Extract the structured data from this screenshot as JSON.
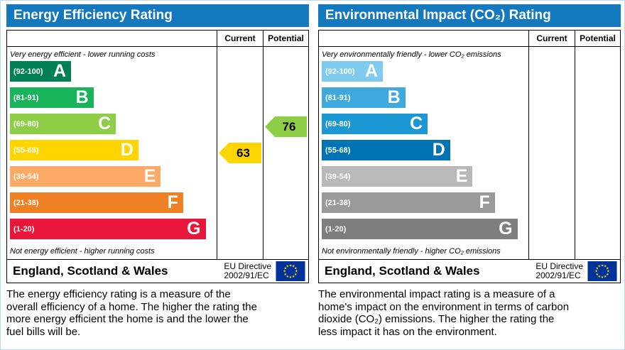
{
  "panels": [
    {
      "title": "Energy Efficiency Rating",
      "col_current": "Current",
      "col_potential": "Potential",
      "top_note": "Very energy efficient - lower running costs",
      "bottom_note": "Not energy efficient - higher running costs",
      "bands": [
        {
          "range": "(92-100)",
          "letter": "A",
          "color": "#008054",
          "width_pct": 30
        },
        {
          "range": "(81-91)",
          "letter": "B",
          "color": "#19b459",
          "width_pct": 41
        },
        {
          "range": "(69-80)",
          "letter": "C",
          "color": "#8dce46",
          "width_pct": 52
        },
        {
          "range": "(55-68)",
          "letter": "D",
          "color": "#ffd500",
          "width_pct": 63
        },
        {
          "range": "(39-54)",
          "letter": "E",
          "color": "#fcaa65",
          "width_pct": 74
        },
        {
          "range": "(21-38)",
          "letter": "F",
          "color": "#ef8023",
          "width_pct": 85
        },
        {
          "range": "(1-20)",
          "letter": "G",
          "color": "#e9153b",
          "width_pct": 96
        }
      ],
      "markers": [
        {
          "column": "current",
          "value": "63",
          "band_index": 3,
          "color": "#ffd500"
        },
        {
          "column": "potential",
          "value": "76",
          "band_index": 2,
          "color": "#8dce46"
        }
      ],
      "footer_region": "England, Scotland & Wales",
      "footer_directive_line1": "EU Directive",
      "footer_directive_line2": "2002/91/EC",
      "description": "The energy efficiency rating is a measure of the overall efficiency of a home. The higher the rating the more energy efficient the home is and the lower the fuel bills will be."
    },
    {
      "title": "Environmental Impact (CO₂) Rating",
      "col_current": "Current",
      "col_potential": "Potential",
      "top_note": "Very environmentally friendly - lower CO₂ emissions",
      "bottom_note": "Not environmentally friendly - higher CO₂ emissions",
      "bands": [
        {
          "range": "(92-100)",
          "letter": "A",
          "color": "#7ecbee",
          "width_pct": 30
        },
        {
          "range": "(81-91)",
          "letter": "B",
          "color": "#3fa8dc",
          "width_pct": 41
        },
        {
          "range": "(69-80)",
          "letter": "C",
          "color": "#1b97d4",
          "width_pct": 52
        },
        {
          "range": "(55-68)",
          "letter": "D",
          "color": "#0073b5",
          "width_pct": 63
        },
        {
          "range": "(39-54)",
          "letter": "E",
          "color": "#b9b9b9",
          "width_pct": 74
        },
        {
          "range": "(21-38)",
          "letter": "F",
          "color": "#9a9a9a",
          "width_pct": 85
        },
        {
          "range": "(1-20)",
          "letter": "G",
          "color": "#7e7e7e",
          "width_pct": 96
        }
      ],
      "markers": [],
      "footer_region": "England, Scotland & Wales",
      "footer_directive_line1": "EU Directive",
      "footer_directive_line2": "2002/91/EC",
      "description": "The environmental impact rating is a measure of a home's impact on the environment in terms of carbon dioxide (CO₂) emissions. The higher the rating the less impact it has on the environment."
    }
  ],
  "colors": {
    "header_blue": "#1478be",
    "eu_flag_blue": "#003399",
    "eu_flag_star": "#ffcc00",
    "current_marker": "#ffd500",
    "potential_marker": "#8dce46"
  },
  "chart_data": [
    {
      "type": "bar",
      "title": "Energy Efficiency Rating",
      "categories": [
        "A",
        "B",
        "C",
        "D",
        "E",
        "F",
        "G"
      ],
      "band_ranges": [
        "92-100",
        "81-91",
        "69-80",
        "55-68",
        "39-54",
        "21-38",
        "1-20"
      ],
      "bar_widths_pct": [
        30,
        41,
        52,
        63,
        74,
        85,
        96
      ],
      "current": 63,
      "current_band": "D",
      "potential": 76,
      "potential_band": "C",
      "legend_position": "none",
      "grid": false
    },
    {
      "type": "bar",
      "title": "Environmental Impact (CO₂) Rating",
      "categories": [
        "A",
        "B",
        "C",
        "D",
        "E",
        "F",
        "G"
      ],
      "band_ranges": [
        "92-100",
        "81-91",
        "69-80",
        "55-68",
        "39-54",
        "21-38",
        "1-20"
      ],
      "bar_widths_pct": [
        30,
        41,
        52,
        63,
        74,
        85,
        96
      ],
      "current": null,
      "potential": null,
      "legend_position": "none",
      "grid": false
    }
  ]
}
